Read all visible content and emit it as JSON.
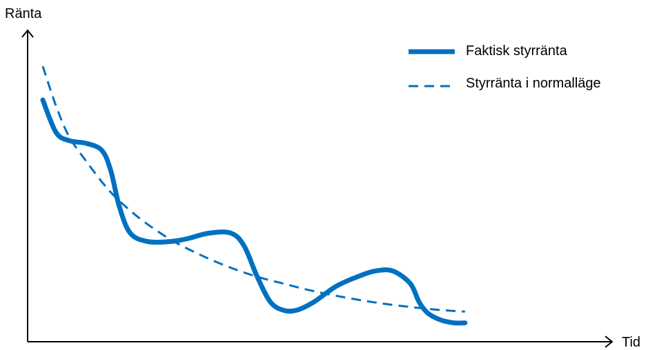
{
  "chart_data": {
    "type": "line",
    "title": "",
    "xlabel": "Tid",
    "ylabel": "Ränta",
    "xlim": [
      0,
      100
    ],
    "ylim": [
      0,
      100
    ],
    "grid": false,
    "axis_ticks": false,
    "legend": {
      "position": "top-right",
      "entries": [
        "Faktisk styrränta",
        "Styrränta i normalläge"
      ]
    },
    "series": [
      {
        "name": "Faktisk styrränta",
        "style": "solid",
        "color": "#0070c0",
        "x": [
          0,
          3,
          6,
          10,
          13.5,
          15.5,
          17.5,
          20,
          24,
          29,
          33,
          38,
          43,
          46,
          49,
          52,
          55,
          58,
          62,
          67,
          72,
          76,
          80,
          84,
          86,
          88,
          91,
          94,
          96.5
        ],
        "y": [
          85,
          73.5,
          70.5,
          69.5,
          67,
          60,
          47,
          37.5,
          34.5,
          34.5,
          35.5,
          37.5,
          37.5,
          33,
          22,
          13,
          10,
          10,
          13,
          18.5,
          22,
          24,
          24,
          19.5,
          13,
          9,
          6.5,
          5.5,
          5.5
        ]
      },
      {
        "name": "Styrränta i normalläge",
        "style": "dashed",
        "color": "#0070c0",
        "x": [
          0,
          3,
          6,
          10,
          15,
          20,
          25,
          30,
          35,
          40,
          45,
          50,
          55,
          60,
          65,
          70,
          75,
          80,
          85,
          90,
          96.5
        ],
        "y": [
          97,
          83,
          72,
          63,
          53,
          45.5,
          39.5,
          34.5,
          30.5,
          27,
          24,
          21.5,
          19.5,
          17.5,
          15.8,
          14.3,
          13,
          11.9,
          11,
          10.2,
          9.5
        ]
      }
    ]
  },
  "style": {
    "axis_color": "#000000",
    "line_color": "#0070c0"
  }
}
